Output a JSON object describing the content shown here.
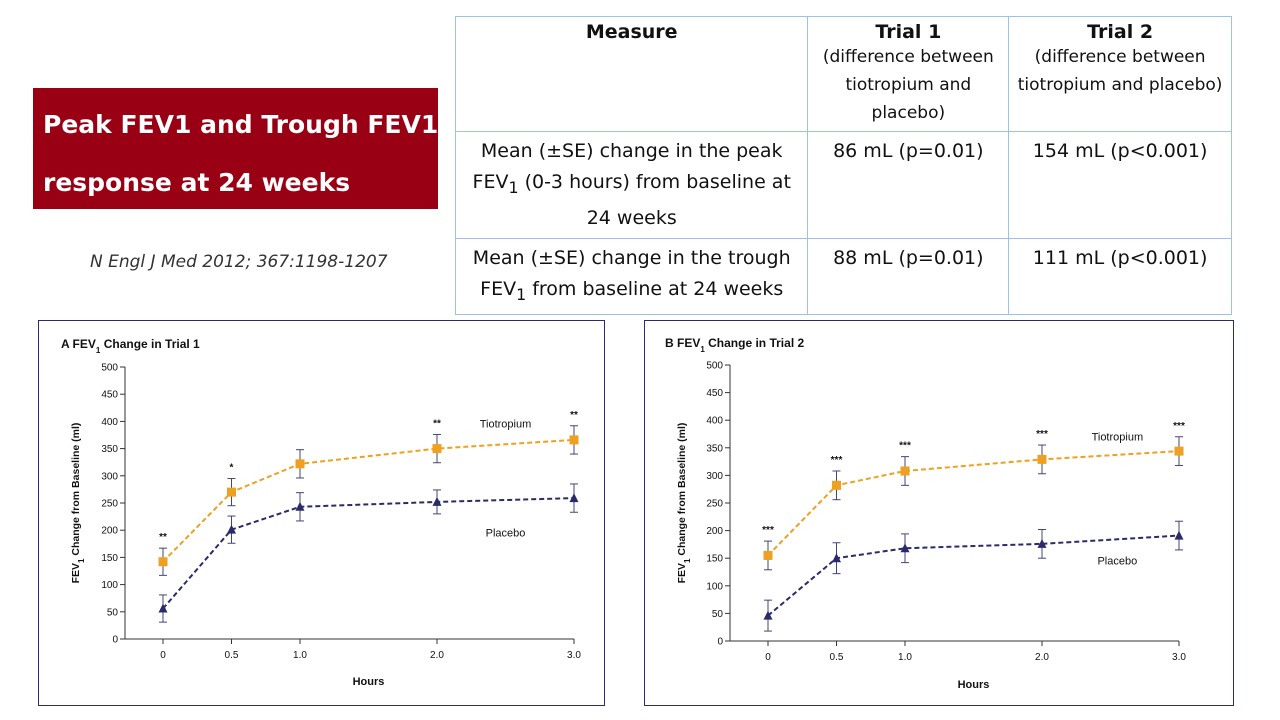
{
  "slide": {
    "title_line1": "Peak FEV1 and Trough FEV1",
    "title_line2": "response at 24 weeks",
    "citation": "N Engl J Med 2012; 367:1198-1207"
  },
  "table": {
    "headers": [
      {
        "label": "Measure",
        "sub": ""
      },
      {
        "label": "Trial 1",
        "sub": "(difference between tiotropium and placebo)"
      },
      {
        "label": "Trial 2",
        "sub": "(difference between tiotropium and placebo)"
      }
    ],
    "rows": [
      {
        "measure_pre": "Mean (±SE) change in the peak FEV",
        "measure_sub": "1",
        "measure_post": "(0-3 hours) from baseline at 24 weeks",
        "trial1": "86 mL (p=0.01)",
        "trial2": "154 mL (p<0.001)"
      },
      {
        "measure_pre": "Mean (±SE) change in the trough FEV",
        "measure_sub": "1",
        "measure_post": "from baseline at 24 weeks",
        "trial1": "88 mL (p=0.01)",
        "trial2": "111 mL (p<0.001)"
      }
    ]
  },
  "colors": {
    "brand": "#990014",
    "tiotropium": "#f0a020",
    "placebo": "#2b2b6b",
    "table_border": "#9cc3e4"
  },
  "chart_data": [
    {
      "type": "line",
      "title_pre": "A FEV",
      "title_sub": "1",
      "title_post": " Change in Trial 1",
      "xlabel": "Hours",
      "ylabel_pre": "FEV",
      "ylabel_sub": "1",
      "ylabel_post": " Change from Baseline (ml)",
      "x": [
        0,
        0.5,
        1.0,
        2.0,
        3.0
      ],
      "x_tick_labels": [
        "0",
        "0.5",
        "1.0",
        "2.0",
        "3.0"
      ],
      "ylim": [
        0,
        500
      ],
      "y_ticks": [
        0,
        50,
        100,
        150,
        200,
        250,
        300,
        350,
        400,
        450,
        500
      ],
      "series": [
        {
          "name": "Tiotropium",
          "color": "#f0a020",
          "marker": "square",
          "values": [
            142,
            270,
            322,
            350,
            366
          ],
          "errors": [
            25,
            25,
            26,
            26,
            26
          ]
        },
        {
          "name": "Placebo",
          "color": "#2b2b6b",
          "marker": "triangle",
          "values": [
            56,
            201,
            243,
            252,
            259
          ],
          "errors": [
            25,
            25,
            26,
            22,
            26
          ]
        }
      ],
      "significance": [
        "**",
        "*",
        "",
        "**",
        "**"
      ],
      "series_labels": [
        {
          "series": "Tiotropium",
          "x": 2.5,
          "y": 395
        },
        {
          "series": "Placebo",
          "x": 2.5,
          "y": 195
        }
      ]
    },
    {
      "type": "line",
      "title_pre": "B FEV",
      "title_sub": "1",
      "title_post": " Change in Trial 2",
      "xlabel": "Hours",
      "ylabel_pre": "FEV",
      "ylabel_sub": "1",
      "ylabel_post": " Change from Baseline (ml)",
      "x": [
        0,
        0.5,
        1.0,
        2.0,
        3.0
      ],
      "x_tick_labels": [
        "0",
        "0.5",
        "1.0",
        "2.0",
        "3.0"
      ],
      "ylim": [
        0,
        500
      ],
      "y_ticks": [
        0,
        50,
        100,
        150,
        200,
        250,
        300,
        350,
        400,
        450,
        500
      ],
      "series": [
        {
          "name": "Tiotropium",
          "color": "#f0a020",
          "marker": "square",
          "values": [
            155,
            282,
            308,
            329,
            344
          ],
          "errors": [
            26,
            26,
            26,
            26,
            26
          ]
        },
        {
          "name": "Placebo",
          "color": "#2b2b6b",
          "marker": "triangle",
          "values": [
            46,
            150,
            168,
            176,
            191
          ],
          "errors": [
            28,
            28,
            26,
            26,
            26
          ]
        }
      ],
      "significance": [
        "***",
        "***",
        "***",
        "***",
        "***"
      ],
      "series_labels": [
        {
          "series": "Tiotropium",
          "x": 2.55,
          "y": 370
        },
        {
          "series": "Placebo",
          "x": 2.55,
          "y": 145
        }
      ]
    }
  ]
}
